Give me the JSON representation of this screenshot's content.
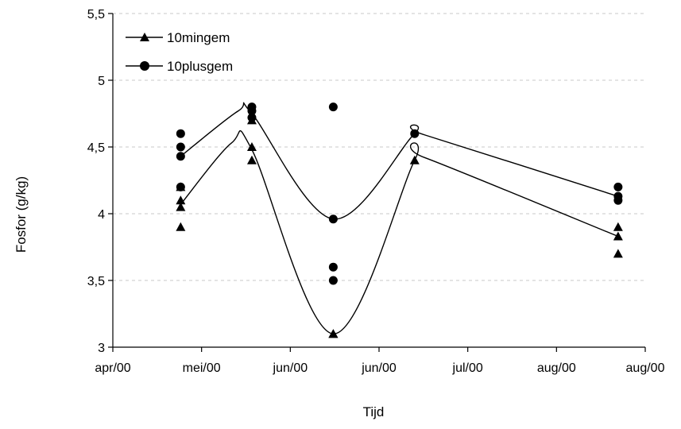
{
  "chart_data": {
    "type": "scatter",
    "title": "",
    "xlabel": "Tijd",
    "ylabel": "Fosfor (g/kg)",
    "x_ticks": [
      "apr/00",
      "mei/00",
      "jun/00",
      "jun/00",
      "jul/00",
      "aug/00",
      "aug/00"
    ],
    "y_ticks": [
      "3",
      "3,5",
      "4",
      "4,5",
      "5",
      "5,5"
    ],
    "ylim": [
      3,
      5.5
    ],
    "grid": "horizontal dashed",
    "legend_position": "top-left",
    "series": [
      {
        "name": "10mingem",
        "marker": "triangle",
        "points": [
          {
            "x": "2000-04-21",
            "y": 4.1
          },
          {
            "x": "2000-04-21",
            "y": 4.05
          },
          {
            "x": "2000-04-21",
            "y": 3.9
          },
          {
            "x": "2000-04-21",
            "y": 4.2
          },
          {
            "x": "2000-05-12",
            "y": 4.7
          },
          {
            "x": "2000-05-12",
            "y": 4.5
          },
          {
            "x": "2000-05-12",
            "y": 4.4
          },
          {
            "x": "2000-06-05",
            "y": 3.1
          },
          {
            "x": "2000-06-05",
            "y": 3.1
          },
          {
            "x": "2000-06-29",
            "y": 4.4
          },
          {
            "x": "2000-08-28",
            "y": 3.9
          },
          {
            "x": "2000-08-28",
            "y": 3.83
          },
          {
            "x": "2000-08-28",
            "y": 3.7
          }
        ],
        "trend": [
          {
            "x": "2000-04-21",
            "y": 4.07
          },
          {
            "x": "2000-05-06",
            "y": 4.53
          },
          {
            "x": "2000-05-12",
            "y": 4.48
          },
          {
            "x": "2000-06-05",
            "y": 3.1
          },
          {
            "x": "2000-06-29",
            "y": 4.4
          },
          {
            "x": "2000-07-02",
            "y": 4.42
          },
          {
            "x": "2000-08-28",
            "y": 3.83
          }
        ]
      },
      {
        "name": "10plusgem",
        "marker": "circle",
        "points": [
          {
            "x": "2000-04-21",
            "y": 4.6
          },
          {
            "x": "2000-04-21",
            "y": 4.5
          },
          {
            "x": "2000-04-21",
            "y": 4.43
          },
          {
            "x": "2000-04-21",
            "y": 4.2
          },
          {
            "x": "2000-05-12",
            "y": 4.8
          },
          {
            "x": "2000-05-12",
            "y": 4.77
          },
          {
            "x": "2000-05-12",
            "y": 4.72
          },
          {
            "x": "2000-06-05",
            "y": 4.8
          },
          {
            "x": "2000-06-05",
            "y": 3.96
          },
          {
            "x": "2000-06-05",
            "y": 3.6
          },
          {
            "x": "2000-06-05",
            "y": 3.5
          },
          {
            "x": "2000-06-29",
            "y": 4.6
          },
          {
            "x": "2000-08-28",
            "y": 4.2
          },
          {
            "x": "2000-08-28",
            "y": 4.13
          },
          {
            "x": "2000-08-28",
            "y": 4.1
          }
        ],
        "trend": [
          {
            "x": "2000-04-21",
            "y": 4.43
          },
          {
            "x": "2000-05-08",
            "y": 4.77
          },
          {
            "x": "2000-05-12",
            "y": 4.75
          },
          {
            "x": "2000-06-05",
            "y": 3.96
          },
          {
            "x": "2000-06-29",
            "y": 4.6
          },
          {
            "x": "2000-07-02",
            "y": 4.59
          },
          {
            "x": "2000-08-28",
            "y": 4.13
          }
        ]
      }
    ]
  }
}
